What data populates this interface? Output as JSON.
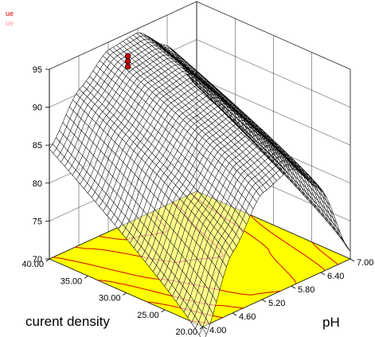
{
  "chart_data": {
    "type": "surface3d",
    "corner_legend": [
      {
        "text": "ue",
        "color": "#e00000"
      },
      {
        "text": "ue",
        "color": "#ff9a9a"
      }
    ],
    "x_axis": {
      "label": "pH",
      "ticks": [
        "4.00",
        "4.60",
        "5.20",
        "5.80",
        "6.40",
        "7.00"
      ],
      "range": [
        4.0,
        7.0
      ]
    },
    "y_axis": {
      "label": "curent density",
      "ticks": [
        "20.00",
        "25.00",
        "30.00",
        "35.00",
        "40.00"
      ],
      "range": [
        20.0,
        40.0
      ]
    },
    "z_axis": {
      "label": "",
      "ticks": [
        "70",
        "75",
        "80",
        "85",
        "90",
        "95"
      ],
      "range": [
        70,
        95
      ]
    },
    "surface": {
      "description_of_shape": "quadratic response with maximum near pH 5.6",
      "pH_samples": [
        4.0,
        4.6,
        5.2,
        5.8,
        6.4,
        7.0
      ],
      "current_density_samples": [
        20.0,
        25.0,
        30.0,
        35.0,
        40.0
      ],
      "response_at_cd_40": [
        84.5,
        90.5,
        94.0,
        94.5,
        91.0,
        84.0
      ],
      "response_at_cd_20": [
        68.0,
        78.0,
        84.0,
        85.5,
        81.0,
        71.0
      ]
    },
    "design_points": {
      "pH": 5.6,
      "current_density": 40.0,
      "values": [
        92.0,
        91.3,
        90.6
      ]
    },
    "colors": {
      "floor": "#ffff00",
      "contour": "#d40000",
      "mesh": "#000000",
      "points": "#cc0000"
    },
    "grid": true
  }
}
